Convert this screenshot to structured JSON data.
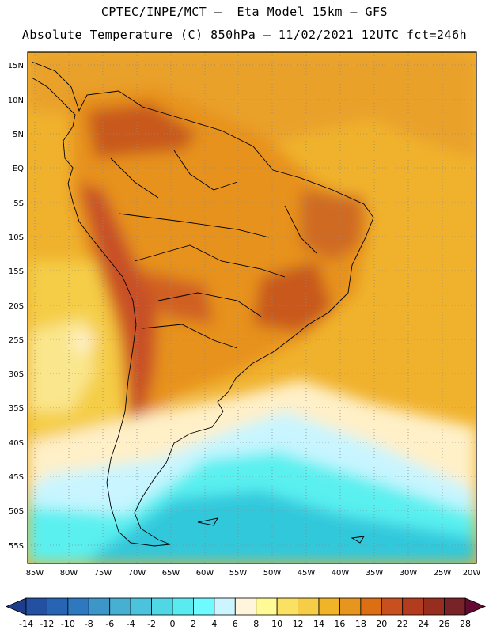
{
  "title_line1": "CPTEC/INPE/MCT –  Eta Model 15km – GFS",
  "title_line2": "Absolute Temperature (C) 850hPa – 11/02/2021 12UTC fct=246h",
  "map": {
    "lon_range": [
      -86,
      -20
    ],
    "lat_range": [
      -58,
      16
    ],
    "lat_ticks": [
      "15N",
      "10N",
      "5N",
      "EQ",
      "5S",
      "10S",
      "15S",
      "20S",
      "25S",
      "30S",
      "35S",
      "40S",
      "45S",
      "50S",
      "55S"
    ],
    "lon_ticks": [
      "85W",
      "80W",
      "75W",
      "70W",
      "65W",
      "60W",
      "55W",
      "50W",
      "45W",
      "40W",
      "35W",
      "30W",
      "25W",
      "20W"
    ],
    "grid": "dotted",
    "field_colors": {
      "hot": "#a5321e",
      "warm": "#d0641e",
      "orange": "#e7921e",
      "amber": "#f0b22d",
      "yellow": "#f5cd46",
      "pale": "#fff0c8",
      "lightcyan": "#c8f5ff",
      "cyan": "#5af0f0",
      "blue": "#32c8dc"
    }
  },
  "colorbar": {
    "labels": [
      "-14",
      "-12",
      "-10",
      "-8",
      "-6",
      "-4",
      "-2",
      "0",
      "2",
      "4",
      "6",
      "8",
      "10",
      "12",
      "14",
      "16",
      "18",
      "20",
      "22",
      "24",
      "26",
      "28"
    ],
    "colors": [
      "#1e3c8c",
      "#2350a0",
      "#2864b4",
      "#2d78be",
      "#3c96c8",
      "#46afd2",
      "#4bc3dc",
      "#50d7e6",
      "#5aebf0",
      "#6efaff",
      "#cdf5ff",
      "#fff5dc",
      "#fffa96",
      "#fae164",
      "#f5cd46",
      "#f0b428",
      "#e6961e",
      "#dc6e14",
      "#c8501e",
      "#b43c1e",
      "#962d1e",
      "#782328",
      "#640a32"
    ]
  }
}
